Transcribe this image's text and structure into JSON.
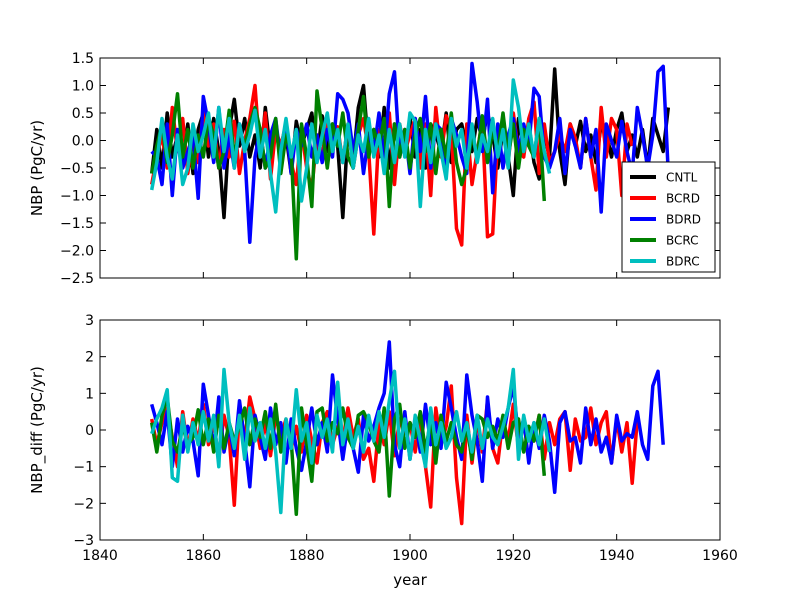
{
  "chart_data": [
    {
      "type": "line",
      "ylabel": "NBP (PgC/yr)",
      "xlabel": "",
      "xlim": [
        1840,
        1960
      ],
      "ylim": [
        -2.5,
        1.5
      ],
      "yticks": [
        1.5,
        1.0,
        0.5,
        0.0,
        -0.5,
        -1.0,
        -1.5,
        -2.0,
        -2.5
      ],
      "ytick_labels": [
        "1.5",
        "1.0",
        "0.5",
        "0.0",
        "−0.5",
        "−1.0",
        "−1.5",
        "−2.0",
        "−2.5"
      ],
      "xticks": [
        1840,
        1860,
        1880,
        1900,
        1920,
        1940,
        1960
      ],
      "show_xtick_labels": false,
      "grid": false,
      "legend_position": "lower-right",
      "series": [
        {
          "name": "CNTL",
          "color": "#000000",
          "x_start": 1850,
          "values": [
            -0.6,
            0.2,
            -0.5,
            0.5,
            -0.3,
            0.1,
            -0.4,
            0.3,
            -0.6,
            0.2,
            0.5,
            -0.3,
            0.4,
            -0.2,
            -1.4,
            0.2,
            0.75,
            -0.1,
            0.4,
            -0.3,
            0.1,
            -0.5,
            0.6,
            -0.2,
            0.3,
            -0.4,
            0.1,
            -0.6,
            0.35,
            -0.1,
            0.2,
            0.5,
            -0.3,
            0.45,
            -0.2,
            0.3,
            -0.1,
            -1.4,
            0.2,
            -0.4,
            0.6,
            1.0,
            -0.2,
            0.2,
            -0.3,
            0.6,
            -0.5,
            0.3,
            0.1,
            -0.2,
            0.4,
            -0.3,
            0.2,
            -0.5,
            0.3,
            0.1,
            -0.2,
            0.5,
            -0.4,
            0.2,
            0.3,
            -0.1,
            -0.2,
            0.4,
            0.0,
            0.5,
            0.1,
            -0.5,
            0.2,
            -0.3,
            -1.0,
            0.4,
            -0.2,
            0.3,
            -0.4,
            -0.7,
            0.1,
            -0.3,
            1.3,
            -0.2,
            -0.8,
            0.3,
            -0.1,
            0.35,
            -0.2,
            0.1,
            -0.4,
            0.3,
            0.15,
            -0.3,
            0.2,
            0.5,
            -0.2,
            0.1,
            -0.3,
            0.2,
            -0.5,
            0.4,
            0.1,
            -0.2,
            0.6
          ]
        },
        {
          "name": "BCRD",
          "color": "#ff0000",
          "x_start": 1850,
          "values": [
            -0.8,
            -0.3,
            0.1,
            -0.5,
            0.6,
            -0.2,
            0.4,
            -0.6,
            0.1,
            -0.4,
            0.55,
            -0.1,
            0.3,
            -0.5,
            0.2,
            -0.3,
            0.35,
            -0.6,
            0.0,
            0.4,
            1.0,
            -0.3,
            0.5,
            -0.7,
            0.2,
            -0.1,
            0.3,
            -0.4,
            -0.8,
            0.2,
            -0.5,
            -0.9,
            0.1,
            -0.3,
            0.4,
            -0.2,
            0.25,
            -0.4,
            0.3,
            -0.5,
            0.1,
            0.4,
            -0.2,
            -1.7,
            0.2,
            -0.3,
            0.5,
            -0.8,
            0.3,
            -0.2,
            0.1,
            0.4,
            -0.5,
            0.3,
            -1.0,
            0.6,
            -0.3,
            0.45,
            0.2,
            -1.6,
            -1.9,
            0.3,
            -0.8,
            -0.2,
            0.35,
            -1.75,
            -1.7,
            0.1,
            0.3,
            -0.4,
            0.5,
            -0.2,
            -0.3,
            0.4,
            0.7,
            -0.6,
            0.3,
            -0.4,
            -0.2,
            0.1,
            -0.2,
            0.3,
            0.05,
            -0.5,
            0.4,
            -0.3,
            -0.9,
            0.6,
            -0.3,
            0.4,
            0.2,
            -1.0,
            0.3,
            -0.1
          ]
        },
        {
          "name": "BDRD",
          "color": "#0000ff",
          "x_start": 1850,
          "values": [
            -0.2,
            -0.3,
            -0.8,
            0.3,
            -1.0,
            0.2,
            -0.5,
            -0.2,
            0.1,
            -1.05,
            0.8,
            0.3,
            -0.4,
            0.6,
            -0.5,
            0.1,
            -0.5,
            0.3,
            -0.2,
            -1.85,
            -0.3,
            0.2,
            -0.5,
            0.1,
            0.4,
            -0.4,
            0.3,
            -0.6,
            0.2,
            -0.1,
            0.3,
            -0.3,
            0.1,
            -0.4,
            0.2,
            -0.3,
            0.85,
            0.75,
            0.5,
            -0.2,
            0.3,
            -0.6,
            0.1,
            -0.2,
            0.5,
            -0.3,
            0.85,
            1.25,
            -0.3,
            0.2,
            -0.6,
            0.4,
            -0.2,
            0.8,
            -0.5,
            0.3,
            0.2,
            -0.6,
            0.4,
            0.1,
            -0.3,
            -0.6,
            1.4,
            0.7,
            -0.2,
            0.75,
            -0.95,
            0.3,
            -0.5,
            0.1,
            0.4,
            -0.2,
            0.3,
            -0.1,
            0.95,
            0.8,
            -0.3,
            -0.5,
            -0.2,
            0.4,
            -0.6,
            0.2,
            -0.1,
            -0.5,
            0.4,
            -0.3,
            0.2,
            -1.3,
            0.3,
            0.0,
            -0.3,
            0.35,
            -0.2,
            -0.6,
            0.6,
            0.1,
            -0.5,
            0.1,
            1.25,
            1.35,
            -0.6
          ]
        },
        {
          "name": "BCRC",
          "color": "#008000",
          "x_start": 1850,
          "values": [
            -0.6,
            -0.1,
            0.3,
            -0.4,
            0.1,
            0.85,
            -0.3,
            0.2,
            -0.5,
            0.1,
            -0.3,
            0.4,
            0.1,
            -0.5,
            -0.2,
            0.55,
            -0.3,
            0.2,
            -0.1,
            0.3,
            0.6,
            0.2,
            -0.5,
            -0.3,
            0.4,
            -0.6,
            0.1,
            -0.2,
            -2.15,
            0.3,
            -0.3,
            -1.2,
            0.9,
            0.2,
            -0.5,
            0.3,
            -0.1,
            0.5,
            -0.3,
            -0.5,
            0.2,
            0.8,
            -0.3,
            0.2,
            -0.1,
            0.4,
            -1.2,
            0.3,
            -0.3,
            0.2,
            -0.5,
            0.1,
            0.4,
            -0.2,
            0.3,
            -0.6,
            0.2,
            -0.3,
            0.5,
            -0.4,
            -0.8,
            -0.5,
            0.1,
            -0.3,
            0.45,
            -0.4,
            0.2,
            -0.2,
            0.5,
            -0.3,
            0.3,
            -0.5,
            0.2,
            -0.1,
            -0.3,
            0.4,
            -1.1
          ]
        },
        {
          "name": "BDRC",
          "color": "#00bfbf",
          "x_start": 1850,
          "values": [
            -0.9,
            -0.4,
            0.4,
            -0.3,
            -0.7,
            0.1,
            -0.8,
            -0.5,
            0.3,
            -0.2,
            0.1,
            0.5,
            -0.3,
            0.6,
            -0.2,
            0.4,
            -0.5,
            0.3,
            -0.2,
            0.1,
            0.55,
            -0.3,
            0.2,
            -0.6,
            -1.3,
            -0.2,
            0.4,
            -0.3,
            0.2,
            -1.1,
            -0.5,
            0.3,
            -0.4,
            0.1,
            0.5,
            -0.2,
            0.2,
            -0.4,
            0.3,
            -0.5,
            0.1,
            -0.2,
            0.4,
            -0.3,
            0.1,
            -0.6,
            0.2,
            -0.4,
            0.3,
            -0.3,
            0.5,
            0.35,
            -1.2,
            0.2,
            -0.4,
            0.3,
            -0.2,
            -0.7,
            0.4,
            -0.1,
            0.2,
            -0.5,
            0.3,
            -0.4,
            0.1,
            -0.2,
            0.4,
            -0.3,
            0.2,
            -0.5,
            1.1,
            0.6,
            -0.2,
            0.3,
            -0.3,
            0.4,
            -0.2,
            -0.6
          ]
        }
      ]
    },
    {
      "type": "line",
      "ylabel": "NBP_diff (PgC/yr)",
      "xlabel": "year",
      "xlim": [
        1840,
        1960
      ],
      "ylim": [
        -3,
        3
      ],
      "yticks": [
        3,
        2,
        1,
        0,
        -1,
        -2,
        -3
      ],
      "ytick_labels": [
        "3",
        "2",
        "1",
        "0",
        "−1",
        "−2",
        "−3"
      ],
      "xticks": [
        1840,
        1860,
        1880,
        1900,
        1920,
        1940,
        1960
      ],
      "xtick_labels": [
        "1840",
        "1860",
        "1880",
        "1900",
        "1920",
        "1940",
        "1960"
      ],
      "show_xtick_labels": true,
      "grid": false,
      "series": [
        {
          "color": "#ff0000",
          "x_start": 1850,
          "values": [
            0.3,
            -0.4,
            0.2,
            0.6,
            -0.2,
            -1.0,
            0.5,
            -0.5,
            0.3,
            -0.3,
            0.7,
            -0.4,
            0.2,
            -0.8,
            0.4,
            -0.2,
            -2.05,
            0.6,
            -0.3,
            0.9,
            0.3,
            -0.5,
            0.2,
            -0.7,
            0.4,
            -0.2,
            0.3,
            -0.5,
            0.1,
            -0.6,
            0.4,
            -0.3,
            -0.9,
            0.2,
            0.5,
            -0.4,
            0.1,
            -0.3,
            0.6,
            -0.2,
            0.3,
            -0.8,
            -0.5,
            -1.4,
            0.2,
            -0.4,
            0.5,
            -0.7,
            0.3,
            -0.1,
            0.2,
            -0.6,
            0.4,
            -1.0,
            -2.1,
            0.6,
            -0.4,
            0.1,
            1.2,
            -1.3,
            -2.55,
            0.4,
            -0.9,
            0.3,
            -0.6,
            0.8,
            -0.5,
            -0.9,
            0.3,
            -0.3,
            0.7,
            -0.5,
            0.2,
            -0.1,
            -0.3,
            0.4,
            -0.8,
            0.2,
            -0.4,
            0.3,
            0.5,
            -1.1,
            0.3,
            -0.3,
            -0.2,
            0.6,
            -0.4,
            0.2,
            0.5,
            -0.9,
            0.3,
            -0.6,
            0.2,
            -1.45,
            0.3
          ]
        },
        {
          "color": "#0000ff",
          "x_start": 1850,
          "values": [
            0.7,
            0.2,
            -0.4,
            0.5,
            -1.0,
            0.3,
            -0.6,
            0.1,
            -0.3,
            -1.25,
            1.25,
            0.4,
            -0.5,
            0.9,
            -0.6,
            0.1,
            -0.7,
            0.8,
            -0.3,
            -1.55,
            0.4,
            -0.2,
            -0.8,
            0.6,
            -0.4,
            0.2,
            -0.9,
            0.3,
            -0.5,
            -1.1,
            -0.3,
            0.6,
            -0.4,
            0.2,
            -0.6,
            1.5,
            0.3,
            -0.8,
            0.2,
            -0.5,
            -1.15,
            0.4,
            -0.3,
            0.1,
            0.6,
            1.0,
            2.4,
            -0.4,
            -1.0,
            0.5,
            -0.8,
            0.3,
            -0.6,
            0.7,
            -0.4,
            0.2,
            -0.5,
            1.3,
            0.6,
            -0.2,
            -0.8,
            1.5,
            0.4,
            -0.3,
            -1.4,
            0.9,
            -0.5,
            0.3,
            -0.2,
            0.6,
            1.2,
            -0.2,
            0.3,
            -0.9,
            0.2,
            -0.5,
            0.4,
            -0.3,
            -1.7,
            0.2,
            0.5,
            -0.3,
            -0.2,
            -0.9,
            0.6,
            -0.4,
            0.3,
            -0.6,
            -0.2,
            -0.9,
            0.4,
            -0.3,
            -0.1,
            -0.2,
            0.5,
            -0.4,
            -0.8,
            1.2,
            1.6,
            -0.4
          ]
        },
        {
          "color": "#008000",
          "x_start": 1850,
          "values": [
            0.2,
            -0.6,
            0.4,
            0.9,
            -0.3,
            -0.6,
            0.1,
            -0.4,
            -0.2,
            0.55,
            -0.4,
            0.3,
            -0.6,
            0.4,
            -0.5,
            0.2,
            -0.3,
            0.1,
            0.6,
            -0.4,
            0.3,
            -0.2,
            0.5,
            -0.5,
            0.7,
            -0.6,
            0.2,
            -0.3,
            -2.3,
            0.6,
            -0.4,
            -1.4,
            0.5,
            0.6,
            -0.3,
            0.2,
            -0.1,
            0.6,
            -0.2,
            -0.5,
            0.4,
            0.5,
            0.2,
            -0.3,
            -0.6,
            0.6,
            -1.8,
            0.3,
            0.7,
            -0.5,
            0.2,
            -0.2,
            0.5,
            -0.6,
            0.3,
            -0.9,
            0.4,
            -0.3,
            0.2,
            -0.4,
            -0.6,
            0.1,
            -0.8,
            0.4,
            0.3,
            -0.2,
            0.1,
            -0.3,
            0.4,
            -0.5,
            0.2,
            0.3,
            -0.6,
            0.1,
            -0.3,
            0.4,
            -1.25
          ]
        },
        {
          "color": "#00bfbf",
          "x_start": 1850,
          "values": [
            -0.1,
            0.3,
            0.6,
            1.1,
            -1.3,
            -1.4,
            0.4,
            -0.6,
            0.2,
            -0.4,
            0.5,
            -0.3,
            0.4,
            -1.0,
            1.65,
            0.2,
            -0.5,
            0.4,
            -0.8,
            0.6,
            -0.3,
            0.2,
            -0.5,
            0.3,
            -0.6,
            -2.25,
            0.3,
            -0.5,
            1.1,
            -0.3,
            0.2,
            -0.9,
            0.4,
            -0.2,
            0.3,
            -0.6,
            1.3,
            -0.4,
            0.3,
            -0.5,
            0.1,
            -0.6,
            0.4,
            -0.3,
            0.5,
            -0.2,
            0.8,
            1.6,
            -0.5,
            0.3,
            -0.8,
            0.4,
            -0.3,
            -1.0,
            0.6,
            -0.4,
            0.2,
            -0.5,
            -0.2,
            0.5,
            -0.3,
            0.2,
            -0.6,
            0.4,
            -0.5,
            0.3,
            -0.2,
            -0.4,
            0.1,
            0.6,
            1.65,
            -0.8,
            0.4,
            -0.3,
            0.2,
            -0.4,
            0.3,
            -0.6
          ]
        }
      ]
    }
  ]
}
